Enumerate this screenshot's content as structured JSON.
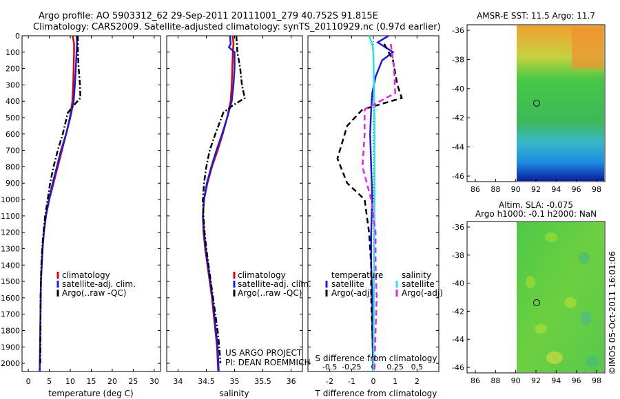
{
  "header": {
    "line1": "Argo profile: AO 5903312_62 29-Sep-2011 20111001_279 40.752S 91.815E",
    "line2": "Climatology: CARS2009. Satellite-adjusted climatology: synTS_20110929.nc (0.97d earlier)"
  },
  "side_note": "©IMOS 05-Oct-2011 16:01:06",
  "project_note": [
    "US ARGO PROJECT",
    "PI: DEAN ROEMMICH"
  ],
  "colors": {
    "climatology": "#e00000",
    "satellite": "#1a1ae6",
    "argo": "#000000",
    "sal_sat": "#22e6e6",
    "sal_argo": "#e622e6"
  },
  "chart_data": [
    {
      "type": "line",
      "id": "temperature",
      "xlabel": "temperature (deg C)",
      "ylim": [
        0,
        2050
      ],
      "xlim": [
        -1.5,
        31.5
      ],
      "xticks": [
        0,
        5,
        10,
        15,
        20,
        25,
        30
      ],
      "yticks": [
        0,
        100,
        200,
        300,
        400,
        500,
        600,
        700,
        800,
        900,
        1000,
        1100,
        1200,
        1300,
        1400,
        1500,
        1600,
        1700,
        1800,
        1900,
        2000
      ],
      "legend": [
        "climatology",
        "satellite-adj. clim.",
        "Argo(..raw -QC)"
      ],
      "series": [
        {
          "name": "climatology",
          "style": "solid",
          "color": "#e00000",
          "points": [
            [
              10.6,
              0
            ],
            [
              10.9,
              50
            ],
            [
              10.9,
              100
            ],
            [
              10.8,
              200
            ],
            [
              10.7,
              300
            ],
            [
              10.5,
              400
            ],
            [
              9.9,
              500
            ],
            [
              9.0,
              600
            ],
            [
              8.0,
              700
            ],
            [
              7.0,
              800
            ],
            [
              6.0,
              900
            ],
            [
              5.0,
              1000
            ],
            [
              4.2,
              1100
            ],
            [
              3.7,
              1200
            ],
            [
              3.4,
              1300
            ],
            [
              3.2,
              1400
            ],
            [
              3.0,
              1500
            ],
            [
              2.9,
              1700
            ],
            [
              2.8,
              1900
            ],
            [
              2.7,
              2050
            ]
          ]
        },
        {
          "name": "satellite-adj. clim.",
          "style": "solid",
          "color": "#1a1ae6",
          "points": [
            [
              11.5,
              0
            ],
            [
              11.6,
              50
            ],
            [
              11.5,
              100
            ],
            [
              11.3,
              200
            ],
            [
              11.1,
              300
            ],
            [
              10.8,
              400
            ],
            [
              10.0,
              500
            ],
            [
              9.0,
              600
            ],
            [
              7.8,
              700
            ],
            [
              6.8,
              800
            ],
            [
              5.8,
              900
            ],
            [
              4.9,
              1000
            ],
            [
              4.2,
              1100
            ],
            [
              3.7,
              1200
            ],
            [
              3.4,
              1300
            ],
            [
              3.2,
              1400
            ],
            [
              3.0,
              1500
            ],
            [
              2.9,
              1700
            ],
            [
              2.8,
              1900
            ],
            [
              2.7,
              2050
            ]
          ]
        },
        {
          "name": "Argo(..raw -QC)",
          "style": "dashdot",
          "color": "#000000",
          "points": [
            [
              11.8,
              0
            ],
            [
              11.8,
              100
            ],
            [
              12.0,
              200
            ],
            [
              12.3,
              300
            ],
            [
              12.4,
              380
            ],
            [
              11.0,
              420
            ],
            [
              9.4,
              470
            ],
            [
              8.2,
              600
            ],
            [
              7.0,
              700
            ],
            [
              6.0,
              800
            ],
            [
              5.2,
              900
            ],
            [
              4.6,
              1000
            ],
            [
              4.0,
              1100
            ],
            [
              3.6,
              1200
            ],
            [
              3.3,
              1300
            ],
            [
              3.1,
              1400
            ],
            [
              3.0,
              1500
            ],
            [
              2.9,
              1600
            ],
            [
              2.9,
              1800
            ],
            [
              2.85,
              2000
            ]
          ]
        }
      ]
    },
    {
      "type": "line",
      "id": "salinity",
      "xlabel": "salinity",
      "ylim": [
        0,
        2050
      ],
      "xlim": [
        33.8,
        36.2
      ],
      "xticks": [
        34,
        34.5,
        35,
        35.5,
        36
      ],
      "legend": [
        "climatology",
        "satellite-adj. clim.",
        "Argo(..raw -QC)"
      ],
      "series": [
        {
          "name": "climatology",
          "style": "solid",
          "color": "#e00000",
          "points": [
            [
              34.97,
              0
            ],
            [
              34.98,
              50
            ],
            [
              34.97,
              100
            ],
            [
              34.96,
              200
            ],
            [
              34.95,
              300
            ],
            [
              34.93,
              400
            ],
            [
              34.87,
              500
            ],
            [
              34.79,
              600
            ],
            [
              34.7,
              700
            ],
            [
              34.6,
              800
            ],
            [
              34.52,
              900
            ],
            [
              34.46,
              1000
            ],
            [
              34.44,
              1100
            ],
            [
              34.45,
              1200
            ],
            [
              34.48,
              1300
            ],
            [
              34.52,
              1400
            ],
            [
              34.56,
              1500
            ],
            [
              34.6,
              1600
            ],
            [
              34.63,
              1700
            ],
            [
              34.66,
              1800
            ],
            [
              34.69,
              1900
            ],
            [
              34.71,
              2050
            ]
          ]
        },
        {
          "name": "satellite-adj. clim.",
          "style": "solid",
          "color": "#1a1ae6",
          "points": [
            [
              34.92,
              0
            ],
            [
              34.93,
              50
            ],
            [
              34.9,
              70
            ],
            [
              35.0,
              100
            ],
            [
              35.0,
              200
            ],
            [
              34.98,
              300
            ],
            [
              34.95,
              400
            ],
            [
              34.87,
              500
            ],
            [
              34.78,
              600
            ],
            [
              34.68,
              700
            ],
            [
              34.59,
              800
            ],
            [
              34.51,
              900
            ],
            [
              34.46,
              1000
            ],
            [
              34.44,
              1100
            ],
            [
              34.46,
              1200
            ],
            [
              34.49,
              1300
            ],
            [
              34.53,
              1400
            ],
            [
              34.57,
              1500
            ],
            [
              34.61,
              1600
            ],
            [
              34.64,
              1700
            ],
            [
              34.67,
              1800
            ],
            [
              34.7,
              1900
            ],
            [
              34.72,
              2050
            ]
          ]
        },
        {
          "name": "Argo(..raw -QC)",
          "style": "dashdot",
          "color": "#000000",
          "points": [
            [
              35.03,
              0
            ],
            [
              35.05,
              100
            ],
            [
              35.1,
              200
            ],
            [
              35.13,
              300
            ],
            [
              35.18,
              380
            ],
            [
              34.95,
              430
            ],
            [
              34.8,
              470
            ],
            [
              34.66,
              600
            ],
            [
              34.56,
              700
            ],
            [
              34.5,
              800
            ],
            [
              34.46,
              900
            ],
            [
              34.44,
              1000
            ],
            [
              34.45,
              1100
            ],
            [
              34.47,
              1200
            ],
            [
              34.5,
              1300
            ],
            [
              34.54,
              1400
            ],
            [
              34.58,
              1500
            ],
            [
              34.62,
              1600
            ],
            [
              34.66,
              1700
            ],
            [
              34.7,
              1800
            ],
            [
              34.73,
              1900
            ],
            [
              34.75,
              2000
            ]
          ]
        }
      ]
    },
    {
      "type": "line",
      "id": "difference",
      "xlabel": "T difference from climatology",
      "toplabel": "S difference from climatology",
      "ylim": [
        0,
        2050
      ],
      "xlim": [
        -3,
        3
      ],
      "xticks": [
        -2,
        -1,
        0,
        1,
        2
      ],
      "s_ticks": [
        [
          "-0.5",
          -2
        ],
        [
          "-0.25",
          -1
        ],
        [
          "0",
          0
        ],
        [
          "0.25",
          1
        ],
        [
          "0.5",
          2
        ]
      ],
      "legend_temperature": [
        "temperature",
        "satellite",
        "Argo(-adj)"
      ],
      "legend_salinity": [
        "salinity",
        "satellite",
        "Argo(-adj)"
      ],
      "series": [
        {
          "name": "satellite",
          "group": "temperature",
          "style": "solid",
          "color": "#1a1ae6",
          "points": [
            [
              0.7,
              0
            ],
            [
              0.2,
              40
            ],
            [
              0.9,
              100
            ],
            [
              0.4,
              150
            ],
            [
              0.1,
              250
            ],
            [
              -0.05,
              350
            ],
            [
              -0.1,
              450
            ],
            [
              -0.15,
              600
            ],
            [
              -0.1,
              800
            ],
            [
              -0.05,
              1000
            ],
            [
              -0.1,
              1200
            ],
            [
              -0.1,
              1400
            ],
            [
              -0.05,
              1600
            ],
            [
              -0.05,
              1800
            ],
            [
              0.0,
              2050
            ]
          ]
        },
        {
          "name": "Argo(-adj)",
          "group": "temperature",
          "style": "dashed",
          "color": "#000000",
          "points": [
            [
              0.5,
              50
            ],
            [
              0.9,
              150
            ],
            [
              1.1,
              300
            ],
            [
              1.3,
              380
            ],
            [
              -0.5,
              450
            ],
            [
              -1.2,
              550
            ],
            [
              -1.65,
              750
            ],
            [
              -1.2,
              900
            ],
            [
              -0.4,
              1000
            ],
            [
              -0.2,
              1200
            ],
            [
              -0.1,
              1400
            ],
            [
              -0.1,
              1600
            ],
            [
              -0.05,
              1800
            ],
            [
              0.0,
              2050
            ]
          ]
        },
        {
          "name": "satellite",
          "group": "salinity",
          "style": "solid",
          "color": "#22e6e6",
          "points": [
            [
              -0.2,
              0
            ],
            [
              -0.05,
              50
            ],
            [
              0.0,
              100
            ],
            [
              0.05,
              500
            ],
            [
              0.05,
              1000
            ],
            [
              0.0,
              2050
            ]
          ]
        },
        {
          "name": "Argo(-adj)",
          "group": "salinity",
          "style": "dashed",
          "color": "#e622e6",
          "points": [
            [
              0.8,
              50
            ],
            [
              0.95,
              200
            ],
            [
              1.0,
              350
            ],
            [
              0.3,
              400
            ],
            [
              -0.4,
              450
            ],
            [
              -0.4,
              600
            ],
            [
              -0.5,
              800
            ],
            [
              -0.1,
              1000
            ],
            [
              0.1,
              1200
            ],
            [
              0.1,
              1400
            ],
            [
              0.15,
              1600
            ],
            [
              0.1,
              1800
            ],
            [
              0.05,
              2050
            ]
          ]
        }
      ]
    }
  ],
  "maps": {
    "sst": {
      "title": "AMSR-E SST: 11.5 Argo: 11.7",
      "xticks": [
        "86",
        "88",
        "90",
        "92",
        "94",
        "96",
        "98"
      ],
      "yticks": [
        "-36",
        "-38",
        "-40",
        "-42",
        "-44",
        "-46"
      ]
    },
    "sla": {
      "title1": "Altim. SLA: -0.075",
      "title2": "Argo h1000: -0.1 h2000: NaN",
      "xticks": [
        "86",
        "88",
        "90",
        "92",
        "94",
        "96",
        "98"
      ],
      "yticks": [
        "-36",
        "-38",
        "-40",
        "-42",
        "-44",
        "-46"
      ]
    }
  }
}
